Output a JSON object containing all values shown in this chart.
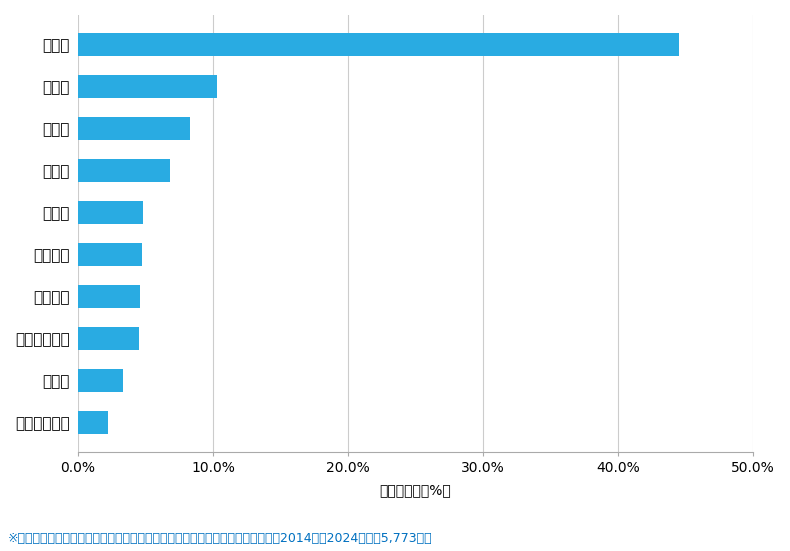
{
  "categories": [
    "金沢市",
    "小松市",
    "白山市",
    "加賀市",
    "能美市",
    "かほく市",
    "野々市市",
    "河北郡津幡町",
    "七尾市",
    "河北郡内灘町"
  ],
  "values": [
    44.5,
    10.3,
    8.3,
    6.8,
    4.8,
    4.7,
    4.6,
    4.5,
    3.3,
    2.2
  ],
  "bar_color": "#29ABE2",
  "xlabel": "件数の割合（%）",
  "xlim": [
    0,
    50
  ],
  "xtick_values": [
    0,
    10,
    20,
    30,
    40,
    50
  ],
  "xtick_labels": [
    "0.0%",
    "10.0%",
    "20.0%",
    "30.0%",
    "40.0%",
    "50.0%"
  ],
  "footnote": "※弊社受付の案件を対象に、受付時に市区町村の回答があったものを集計（期間2014年～2024年、計5,773件）",
  "footnote_color": "#0070C0",
  "bg_color": "#FFFFFF",
  "bar_height": 0.55,
  "label_fontsize": 11,
  "tick_fontsize": 10,
  "xlabel_fontsize": 10,
  "footnote_fontsize": 9
}
